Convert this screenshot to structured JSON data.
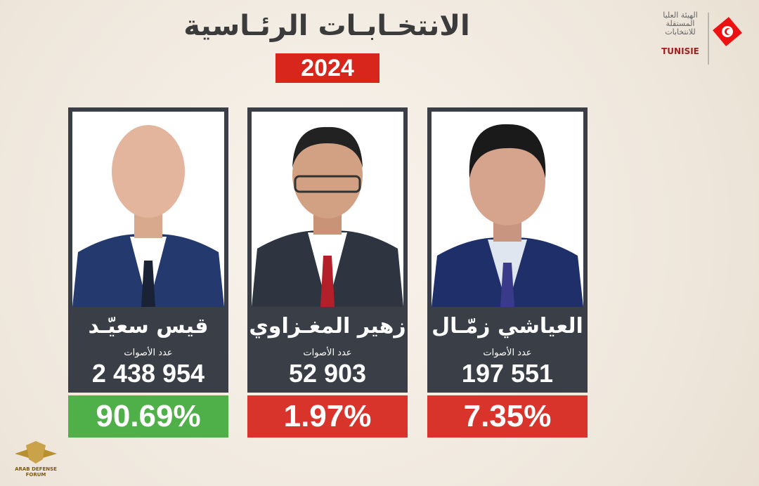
{
  "header": {
    "title": "الانتخـابـات الرئـاسية",
    "year": "2024"
  },
  "logo": {
    "name_ar": "الهيئة العليا المستقلة للانتخابات",
    "name_latin": "TUNISIE"
  },
  "candidates": [
    {
      "name": "قيس سعيّـد",
      "votes_label": "عدد الأصوات",
      "votes": "2 438 954",
      "percent": "90.69%"
    },
    {
      "name": "زهير المغـزاوي",
      "votes_label": "عدد الأصوات",
      "votes": "52 903",
      "percent": "1.97%"
    },
    {
      "name": "العياشي زمّـال",
      "votes_label": "عدد الأصوات",
      "votes": "197 551",
      "percent": "7.35%"
    }
  ],
  "watermark": "ARAB DEFENSE FORUM"
}
